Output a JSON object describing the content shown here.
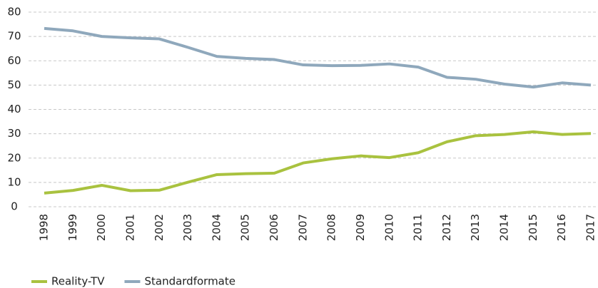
{
  "chart_data": {
    "type": "line",
    "categories": [
      "1998",
      "1999",
      "2000",
      "2001",
      "2002",
      "2003",
      "2004",
      "2005",
      "2006",
      "2007",
      "2008",
      "2009",
      "2010",
      "2011",
      "2012",
      "2013",
      "2014",
      "2015",
      "2016",
      "2017"
    ],
    "series": [
      {
        "name": "Reality-TV",
        "color": "#a9c23f",
        "values": [
          5.6,
          6.7,
          8.8,
          6.6,
          6.8,
          10.1,
          13.2,
          13.6,
          13.8,
          18.0,
          19.7,
          20.9,
          20.2,
          22.2,
          26.7,
          29.2,
          29.7,
          30.8,
          29.7,
          30.1
        ]
      },
      {
        "name": "Standardformate",
        "color": "#8fa8bc",
        "values": [
          73.3,
          72.3,
          70.0,
          69.4,
          69.0,
          65.5,
          61.8,
          61.0,
          60.5,
          58.3,
          58.0,
          58.1,
          58.7,
          57.4,
          53.2,
          52.4,
          50.4,
          49.2,
          50.9,
          50.0
        ]
      }
    ],
    "ylim": [
      0,
      80
    ],
    "yticks": [
      0,
      10,
      20,
      30,
      40,
      50,
      60,
      70,
      80
    ],
    "grid": true,
    "legend": "bottom-left"
  }
}
